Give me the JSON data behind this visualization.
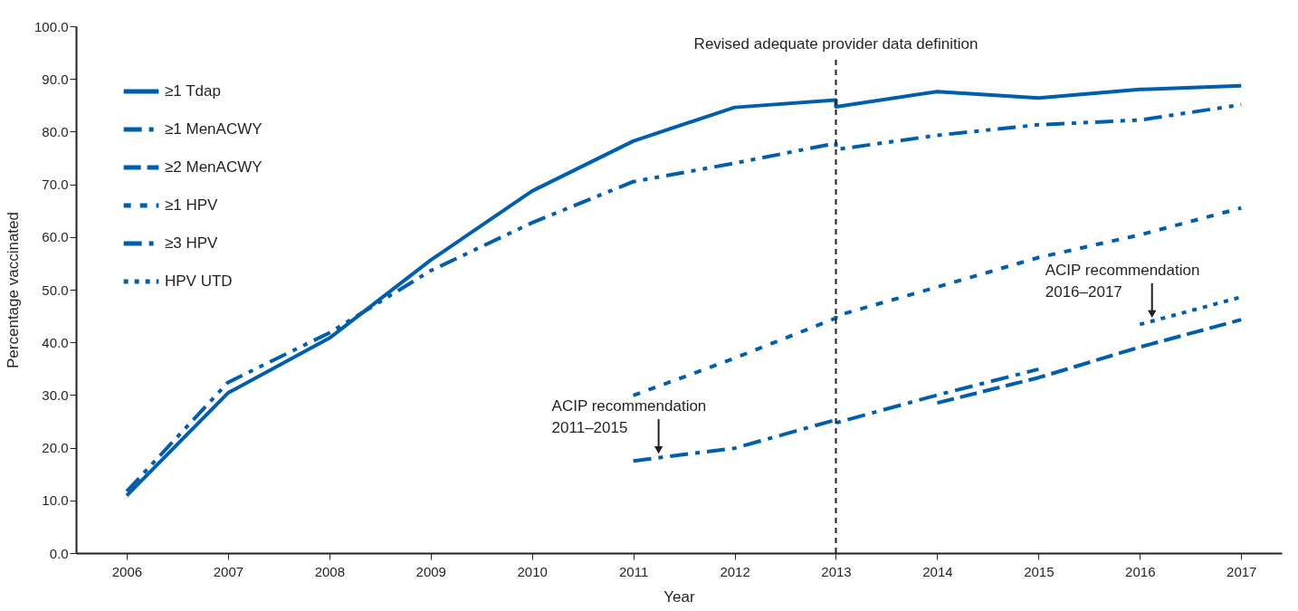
{
  "chart_data": {
    "type": "line",
    "xlabel": "Year",
    "ylabel": "Percentage vaccinated",
    "xlim": [
      2005.5,
      2017.4
    ],
    "xticks": [
      2006,
      2007,
      2008,
      2009,
      2010,
      2011,
      2012,
      2013,
      2014,
      2015,
      2016,
      2017
    ],
    "ylim": [
      0,
      100
    ],
    "yticks": [
      {
        "value": 0,
        "label": "0.0"
      },
      {
        "value": 10,
        "label": "10.0"
      },
      {
        "value": 20,
        "label": "20.0"
      },
      {
        "value": 30,
        "label": "30.0"
      },
      {
        "value": 40,
        "label": "40.0"
      },
      {
        "value": 50,
        "label": "50.0"
      },
      {
        "value": 60,
        "label": "60.0"
      },
      {
        "value": 70,
        "label": "70.0"
      },
      {
        "value": 80,
        "label": "80.0"
      },
      {
        "value": 90,
        "label": "90.0"
      },
      {
        "value": 100,
        "label": "100.0"
      }
    ],
    "grid": false,
    "legend": "top left",
    "marker": "none",
    "series": [
      {
        "name": "≥1 Tdap",
        "color": "#005eaa",
        "line_style": "solid",
        "x": [
          2006,
          2007,
          2008,
          2009,
          2010,
          2011,
          2012,
          2013,
          2013,
          2014,
          2015,
          2016,
          2017
        ],
        "values": [
          10.9,
          30.4,
          40.8,
          55.6,
          68.7,
          78.2,
          84.6,
          86.0,
          84.7,
          87.6,
          86.4,
          88.0,
          88.7
        ]
      },
      {
        "name": "≥1 MenACWY",
        "color": "#005eaa",
        "line_style": "dashdotdot",
        "x": [
          2006,
          2007,
          2008,
          2009,
          2010,
          2011,
          2012,
          2013,
          2013,
          2014,
          2015,
          2016,
          2017
        ],
        "values": [
          11.7,
          32.4,
          41.8,
          53.6,
          62.7,
          70.5,
          74.0,
          77.8,
          76.6,
          79.3,
          81.3,
          82.2,
          85.1
        ]
      },
      {
        "name": "≥2 MenACWY",
        "color": "#005eaa",
        "line_style": "dashed",
        "x": [
          2014,
          2015,
          2016,
          2017
        ],
        "values": [
          28.5,
          33.3,
          39.1,
          44.3
        ]
      },
      {
        "name": "≥1 HPV",
        "color": "#005eaa",
        "line_style": "dotted",
        "x": [
          2011,
          2012,
          2013,
          2013,
          2014,
          2015,
          2016,
          2017
        ],
        "values": [
          29.9,
          37.0,
          44.6,
          45.0,
          50.5,
          56.1,
          60.4,
          65.5
        ]
      },
      {
        "name": "≥3 HPV",
        "color": "#005eaa",
        "line_style": "dashdot",
        "x": [
          2011,
          2012,
          2013,
          2013,
          2014,
          2015
        ],
        "values": [
          17.5,
          19.9,
          25.3,
          24.7,
          30.0,
          34.9
        ]
      },
      {
        "name": "HPV UTD",
        "color": "#005eaa",
        "line_style": "densedotted",
        "x": [
          2016,
          2017
        ],
        "values": [
          43.4,
          48.6
        ]
      }
    ],
    "ref_lines": [
      {
        "axis": "x",
        "value": 2013,
        "label": "Revised adequate provider data definition",
        "color": "#231f20",
        "line_style": "dashed"
      }
    ],
    "annotations": [
      {
        "text": "ACIP recommendation\n2011–2015",
        "x": 2011.25,
        "y": 18.2
      },
      {
        "text": "ACIP recommendation\n2016–2017",
        "x": 2016.12,
        "y": 44.0
      }
    ]
  }
}
